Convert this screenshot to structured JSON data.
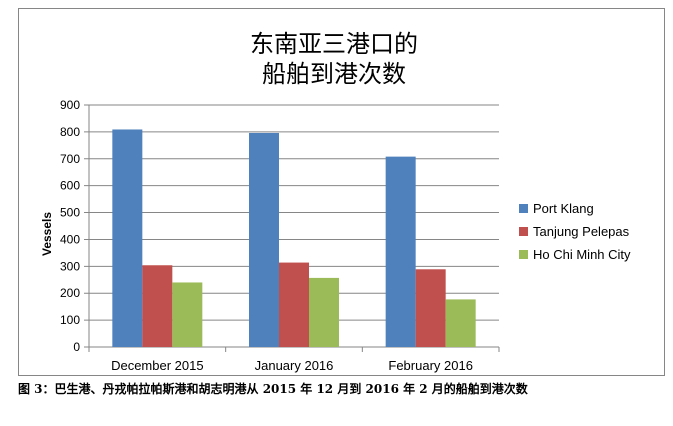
{
  "caption": "图 3：巴生港、丹戎帕拉帕斯港和胡志明港从 2015 年 12 月到 2016 年 2 月的船舶到港次数",
  "chart_data": {
    "type": "bar",
    "title_lines": [
      "东南亚三港口的",
      "船舶到港次数"
    ],
    "ylabel": "Vessels",
    "xlabel": "",
    "categories": [
      "December 2015",
      "January 2016",
      "February 2016"
    ],
    "ylim": [
      0,
      900
    ],
    "yticks": [
      0,
      100,
      200,
      300,
      400,
      500,
      600,
      700,
      800,
      900
    ],
    "grid": true,
    "legend_position": "right",
    "series": [
      {
        "name": "Port Klang",
        "color": "#4F81BD",
        "values": [
          809,
          796,
          708
        ]
      },
      {
        "name": "Tanjung Pelepas",
        "color": "#C0504D",
        "values": [
          304,
          314,
          289
        ]
      },
      {
        "name": "Ho Chi Minh City",
        "color": "#9BBB59",
        "values": [
          240,
          257,
          177
        ]
      }
    ]
  }
}
